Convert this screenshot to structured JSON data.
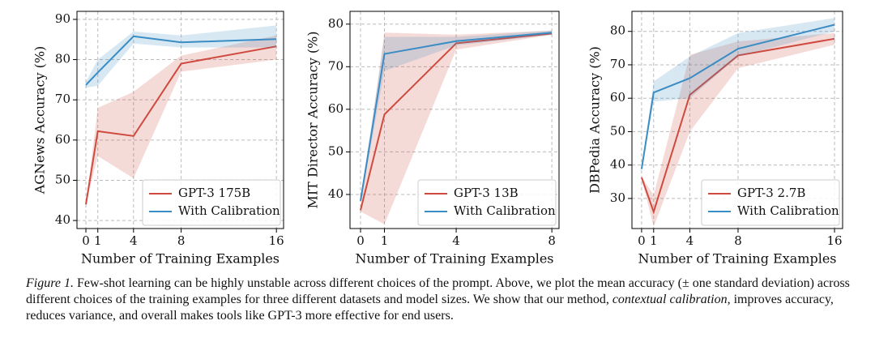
{
  "chart_data": [
    {
      "type": "line",
      "xlabel": "Number of Training Examples",
      "ylabel": "AGNews Accuracy (%)",
      "x": [
        0,
        1,
        4,
        8,
        16
      ],
      "xlim": [
        -0.75,
        16.6
      ],
      "xticks": [
        0,
        1,
        4,
        8,
        16
      ],
      "ylim": [
        38,
        92
      ],
      "yticks": [
        40,
        50,
        60,
        70,
        80,
        90
      ],
      "grid": true,
      "legend": "lower right",
      "series": [
        {
          "name": "GPT-3 175B",
          "color": "#cf4a3e",
          "values": [
            44,
            62.2,
            61,
            79,
            83.3
          ],
          "lower": [
            44,
            56,
            50.5,
            77,
            80
          ],
          "upper": [
            44,
            68,
            72,
            81,
            86
          ]
        },
        {
          "name": "With Calibration",
          "color": "#3a8cc4",
          "values": [
            73.7,
            76.8,
            85.8,
            84.3,
            85.1
          ],
          "lower": [
            73,
            73.5,
            84,
            83,
            83
          ],
          "upper": [
            74.5,
            80,
            87,
            86,
            88.5
          ]
        }
      ]
    },
    {
      "type": "line",
      "xlabel": "Number of Training Examples",
      "ylabel": "MIT Director Accuracy (%)",
      "x": [
        0,
        1,
        4,
        8
      ],
      "xlim": [
        -0.44,
        8.3
      ],
      "xticks": [
        0,
        1,
        4,
        8
      ],
      "ylim": [
        32,
        83
      ],
      "yticks": [
        40,
        50,
        60,
        70,
        80
      ],
      "grid": true,
      "legend": "lower right",
      "series": [
        {
          "name": "GPT-3 13B",
          "color": "#cf4a3e",
          "values": [
            36.3,
            58.8,
            75.5,
            77.8
          ],
          "lower": [
            36,
            33,
            74,
            77.5
          ],
          "upper": [
            37,
            78,
            77.5,
            78.5
          ]
        },
        {
          "name": "With Calibration",
          "color": "#3a8cc4",
          "values": [
            38.5,
            73,
            76,
            78
          ],
          "lower": [
            38,
            69,
            75,
            77.5
          ],
          "upper": [
            39,
            77,
            77,
            78.5
          ]
        }
      ]
    },
    {
      "type": "line",
      "xlabel": "Number of Training Examples",
      "ylabel": "DBPedia Accuracy (%)",
      "x": [
        0,
        1,
        4,
        8,
        16
      ],
      "xlim": [
        -0.8,
        16.67
      ],
      "xticks": [
        0,
        1,
        4,
        8,
        16
      ],
      "ylim": [
        21,
        86
      ],
      "yticks": [
        30,
        40,
        50,
        60,
        70,
        80
      ],
      "grid": true,
      "legend": "lower right",
      "series": [
        {
          "name": "GPT-3 2.7B",
          "color": "#cf4a3e",
          "values": [
            36.3,
            26,
            61,
            72.8,
            77.8
          ],
          "lower": [
            36,
            21.5,
            50,
            69,
            76
          ],
          "upper": [
            36.5,
            31,
            73,
            77,
            79.5
          ]
        },
        {
          "name": "With Calibration",
          "color": "#3a8cc4",
          "values": [
            38.8,
            61.7,
            66,
            74.8,
            82
          ],
          "lower": [
            38.5,
            59,
            60,
            72.5,
            80
          ],
          "upper": [
            39,
            65,
            72.5,
            79.5,
            84
          ]
        }
      ]
    }
  ],
  "caption": {
    "label": "Figure 1.",
    "text_1": "Few-shot learning can be highly unstable across different choices of the prompt. Above, we plot the mean accuracy (± one standard deviation) across different choices of the training examples for three different datasets and model sizes. We show that our method,",
    "emphasis": "contextual calibration",
    "text_2": ", improves accuracy, reduces variance, and overall makes tools like GPT-3 more effective for end users."
  }
}
